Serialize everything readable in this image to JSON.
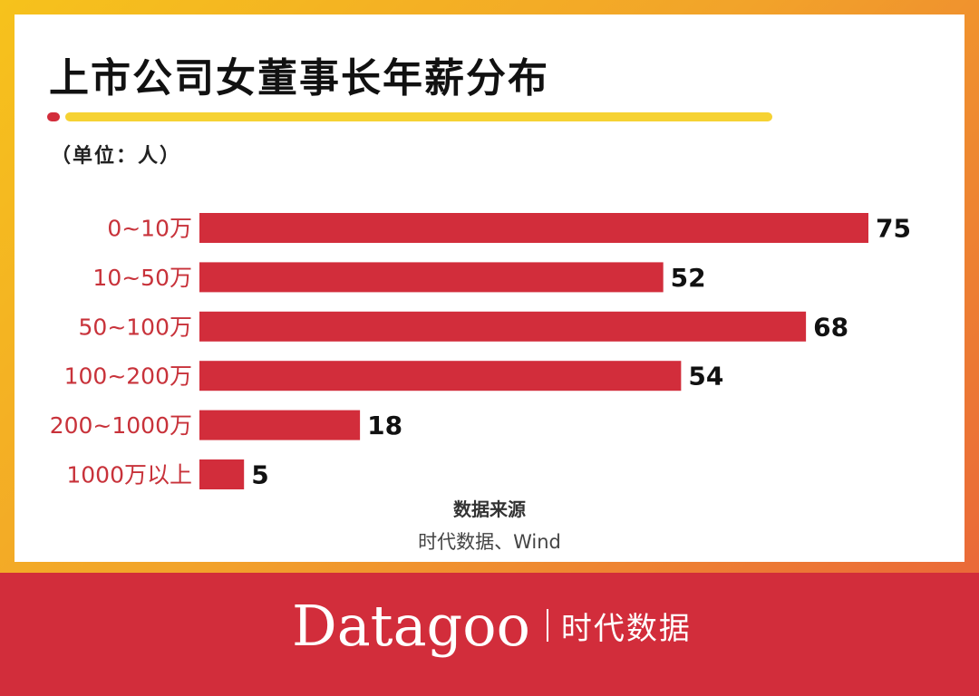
{
  "title": "上市公司女董事长年薪分布",
  "unit": "（单位：人）",
  "source": {
    "title": "数据来源",
    "text": "时代数据、Wind"
  },
  "brand": {
    "name": "Datagoo",
    "cn": "时代数据"
  },
  "colors": {
    "bar": "#d22d3b",
    "accent_yellow": "#f6d233",
    "accent_red": "#d22d3b",
    "category_label": "#c8323a"
  },
  "chart_data": {
    "type": "bar",
    "orientation": "horizontal",
    "title": "上市公司女董事长年薪分布",
    "categories": [
      "0~10万",
      "10~50万",
      "50~100万",
      "100~200万",
      "200~1000万",
      "1000万以上"
    ],
    "values": [
      75,
      52,
      68,
      54,
      18,
      5
    ],
    "xlim": [
      0,
      75
    ],
    "grid": false
  }
}
